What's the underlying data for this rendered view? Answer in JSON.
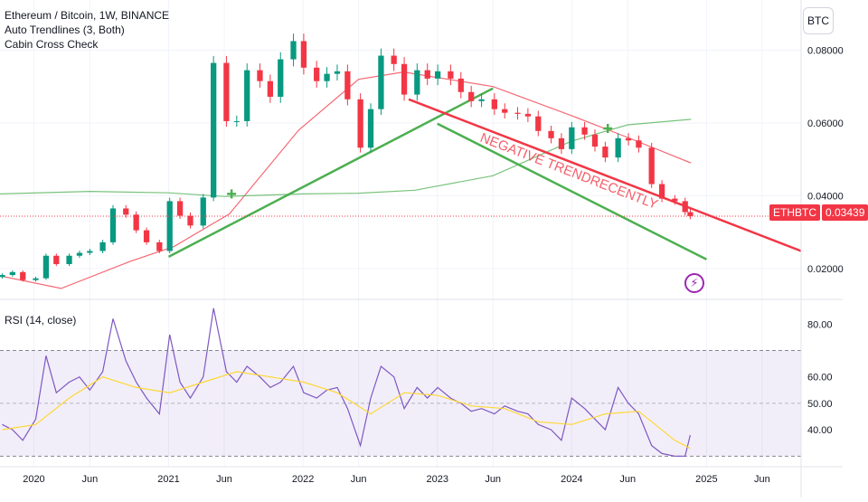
{
  "legend": {
    "title": "Ethereum / Bitcoin, 1W, BINANCE",
    "indicators": [
      "Auto Trendlines (3, Both)",
      "Cabin Cross Check"
    ],
    "rsi_label": "RSI (14, close)"
  },
  "currency_button": "BTC",
  "price_badge": {
    "symbol": "ETHBTC",
    "value": "0.03439"
  },
  "annotation": "NEGATIVE TRENDRECENTLY",
  "colors": {
    "up": "#089981",
    "down": "#f23645",
    "ma_fast": "#f23645",
    "ma_slow": "#4caf50",
    "trend_up": "#4caf50",
    "trend_down": "#f23645",
    "rsi": "#7e57c2",
    "rsi_ma": "#fdd835",
    "rsi_band": "#7e57c2"
  },
  "icons": {
    "alert": "lightning-icon"
  },
  "chart_data": [
    {
      "type": "candlestick",
      "title": "Ethereum / Bitcoin, 1W, BINANCE",
      "x_ticks": [
        "2020",
        "Jun",
        "2021",
        "Jun",
        "2022",
        "Jun",
        "2023",
        "Jun",
        "2024",
        "Jun",
        "2025",
        "Jun"
      ],
      "x_tick_dates": [
        "2020-01-01",
        "2020-06-01",
        "2021-01-01",
        "2021-06-01",
        "2022-01-01",
        "2022-06-01",
        "2023-01-01",
        "2023-06-01",
        "2024-01-01",
        "2024-06-01",
        "2025-01-01",
        "2025-06-01"
      ],
      "x_range": [
        "2019-10-01",
        "2025-09-15"
      ],
      "y_ticks": [
        "0.02000",
        "0.04000",
        "0.06000",
        "0.08000"
      ],
      "ylim": [
        0.0115,
        0.0938
      ],
      "last_price": 0.03439,
      "series": [
        {
          "type": "line",
          "x": [
            "2019-09-30",
            "2020-03-15",
            "2020-09-20",
            "2021-01-15",
            "2021-06-15",
            "2021-12-20",
            "2022-06-01",
            "2022-10-01",
            "2023-06-01",
            "2024-01-01",
            "2024-06-01",
            "2024-11-20"
          ],
          "values": [
            0.018,
            0.0145,
            0.022,
            0.026,
            0.035,
            0.058,
            0.072,
            0.074,
            0.07,
            0.062,
            0.056,
            0.049
          ]
        },
        {
          "type": "line",
          "x": [
            "2019-09-30",
            "2020-06-01",
            "2021-01-01",
            "2021-06-01",
            "2022-01-01",
            "2022-06-01",
            "2022-11-01",
            "2023-06-01",
            "2024-01-01",
            "2024-06-01",
            "2024-11-20"
          ],
          "values": [
            0.0405,
            0.0412,
            0.0408,
            0.0398,
            0.0405,
            0.0407,
            0.0415,
            0.0455,
            0.055,
            0.0595,
            0.061
          ]
        },
        {
          "type": "trendline",
          "x": [
            "2021-01-01",
            "2023-06-01"
          ],
          "values": [
            0.0232,
            0.0695
          ]
        },
        {
          "type": "trendline",
          "x": [
            "2022-10-15",
            "2025-09-15"
          ],
          "values": [
            0.0665,
            0.0248
          ]
        },
        {
          "type": "trendline",
          "x": [
            "2023-01-01",
            "2025-01-01"
          ],
          "values": [
            0.0598,
            0.0225
          ]
        }
      ],
      "candles": [
        {
          "x": "2019-10-07",
          "close": 0.0182
        },
        {
          "x": "2019-11-04",
          "close": 0.019
        },
        {
          "x": "2019-12-02",
          "close": 0.0168
        },
        {
          "x": "2020-01-06",
          "close": 0.0173
        },
        {
          "x": "2020-02-03",
          "close": 0.0235
        },
        {
          "x": "2020-03-02",
          "close": 0.0212
        },
        {
          "x": "2020-04-06",
          "close": 0.0235
        },
        {
          "x": "2020-05-04",
          "close": 0.0243
        },
        {
          "x": "2020-06-01",
          "close": 0.0248
        },
        {
          "x": "2020-07-06",
          "close": 0.0272
        },
        {
          "x": "2020-08-03",
          "close": 0.0365
        },
        {
          "x": "2020-09-07",
          "close": 0.0348
        },
        {
          "x": "2020-10-05",
          "close": 0.0305
        },
        {
          "x": "2020-11-02",
          "close": 0.0272
        },
        {
          "x": "2020-12-07",
          "close": 0.0248
        },
        {
          "x": "2021-01-04",
          "close": 0.0385
        },
        {
          "x": "2021-02-01",
          "close": 0.0345
        },
        {
          "x": "2021-03-01",
          "close": 0.0318
        },
        {
          "x": "2021-04-05",
          "close": 0.0395
        },
        {
          "x": "2021-05-03",
          "close": 0.0765
        },
        {
          "x": "2021-06-07",
          "close": 0.0605
        },
        {
          "x": "2021-07-05",
          "close": 0.0605
        },
        {
          "x": "2021-08-02",
          "close": 0.0745
        },
        {
          "x": "2021-09-06",
          "close": 0.0715
        },
        {
          "x": "2021-10-04",
          "close": 0.0672
        },
        {
          "x": "2021-11-01",
          "close": 0.0775
        },
        {
          "x": "2021-12-06",
          "close": 0.0825
        },
        {
          "x": "2022-01-03",
          "close": 0.0752
        },
        {
          "x": "2022-02-07",
          "close": 0.0715
        },
        {
          "x": "2022-03-07",
          "close": 0.0735
        },
        {
          "x": "2022-04-04",
          "close": 0.0742
        },
        {
          "x": "2022-05-02",
          "close": 0.0665
        },
        {
          "x": "2022-06-06",
          "close": 0.0532
        },
        {
          "x": "2022-07-04",
          "close": 0.0638
        },
        {
          "x": "2022-08-01",
          "close": 0.0785
        },
        {
          "x": "2022-09-05",
          "close": 0.0762
        },
        {
          "x": "2022-10-03",
          "close": 0.0678
        },
        {
          "x": "2022-11-07",
          "close": 0.0745
        },
        {
          "x": "2022-12-05",
          "close": 0.0722
        },
        {
          "x": "2023-01-02",
          "close": 0.0742
        },
        {
          "x": "2023-02-06",
          "close": 0.0722
        },
        {
          "x": "2023-03-06",
          "close": 0.0685
        },
        {
          "x": "2023-04-03",
          "close": 0.066
        },
        {
          "x": "2023-05-01",
          "close": 0.0665
        },
        {
          "x": "2023-06-05",
          "close": 0.0638
        },
        {
          "x": "2023-07-03",
          "close": 0.0628
        },
        {
          "x": "2023-08-07",
          "close": 0.0625
        },
        {
          "x": "2023-09-04",
          "close": 0.0618
        },
        {
          "x": "2023-10-02",
          "close": 0.0578
        },
        {
          "x": "2023-11-06",
          "close": 0.0558
        },
        {
          "x": "2023-12-04",
          "close": 0.0528
        },
        {
          "x": "2024-01-01",
          "close": 0.0588
        },
        {
          "x": "2024-02-05",
          "close": 0.0568
        },
        {
          "x": "2024-03-04",
          "close": 0.0535
        },
        {
          "x": "2024-04-01",
          "close": 0.0505
        },
        {
          "x": "2024-05-06",
          "close": 0.0558
        },
        {
          "x": "2024-06-03",
          "close": 0.0552
        },
        {
          "x": "2024-07-01",
          "close": 0.0532
        },
        {
          "x": "2024-08-05",
          "close": 0.0432
        },
        {
          "x": "2024-09-02",
          "close": 0.0392
        },
        {
          "x": "2024-10-07",
          "close": 0.0385
        },
        {
          "x": "2024-11-04",
          "close": 0.0355
        },
        {
          "x": "2024-11-18",
          "close": 0.03439
        }
      ],
      "markers": [
        {
          "x": "2021-06-21",
          "value": 0.0405,
          "shape": "cross"
        },
        {
          "x": "2024-04-08",
          "value": 0.0585,
          "shape": "cross"
        }
      ]
    },
    {
      "type": "line",
      "title": "RSI (14, close)",
      "y_ticks": [
        "40.00",
        "50.00",
        "60.00",
        "80.00"
      ],
      "ylim": [
        26,
        89
      ],
      "band": [
        30,
        70
      ],
      "midline": 50,
      "series": [
        {
          "x": [
            "2019-10-07",
            "2019-11-04",
            "2019-12-02",
            "2020-01-06",
            "2020-02-03",
            "2020-03-02",
            "2020-04-06",
            "2020-05-04",
            "2020-06-01",
            "2020-07-06",
            "2020-08-03",
            "2020-09-07",
            "2020-10-05",
            "2020-11-02",
            "2020-12-07",
            "2021-01-04",
            "2021-02-01",
            "2021-03-01",
            "2021-04-05",
            "2021-05-03",
            "2021-06-07",
            "2021-07-05",
            "2021-08-02",
            "2021-09-06",
            "2021-10-04",
            "2021-11-01",
            "2021-12-06",
            "2022-01-03",
            "2022-02-07",
            "2022-03-07",
            "2022-04-04",
            "2022-05-02",
            "2022-06-06",
            "2022-07-04",
            "2022-08-01",
            "2022-09-05",
            "2022-10-03",
            "2022-11-07",
            "2022-12-05",
            "2023-01-02",
            "2023-02-06",
            "2023-03-06",
            "2023-04-03",
            "2023-05-01",
            "2023-06-05",
            "2023-07-03",
            "2023-08-07",
            "2023-09-04",
            "2023-10-02",
            "2023-11-06",
            "2023-12-04",
            "2024-01-01",
            "2024-02-05",
            "2024-03-04",
            "2024-04-01",
            "2024-05-06",
            "2024-06-03",
            "2024-07-01",
            "2024-08-05",
            "2024-09-02",
            "2024-10-07",
            "2024-11-04",
            "2024-11-18"
          ],
          "values": [
            42,
            40,
            36,
            44,
            68,
            54,
            58,
            60,
            55,
            62,
            82,
            66,
            58,
            52,
            46,
            76,
            58,
            52,
            60,
            86,
            62,
            58,
            64,
            60,
            56,
            58,
            64,
            54,
            52,
            55,
            56,
            48,
            34,
            52,
            64,
            60,
            48,
            56,
            52,
            56,
            52,
            50,
            47,
            48,
            46,
            49,
            47,
            46,
            42,
            40,
            36,
            52,
            48,
            44,
            40,
            56,
            50,
            46,
            34,
            31,
            30,
            30,
            38
          ]
        },
        {
          "x": [
            "2019-10-07",
            "2020-01-06",
            "2020-04-06",
            "2020-07-06",
            "2020-10-05",
            "2021-01-04",
            "2021-04-05",
            "2021-07-05",
            "2021-10-04",
            "2022-01-03",
            "2022-04-04",
            "2022-07-04",
            "2022-10-03",
            "2023-01-02",
            "2023-04-03",
            "2023-07-03",
            "2023-10-02",
            "2024-01-01",
            "2024-04-01",
            "2024-07-01",
            "2024-10-07",
            "2024-11-18"
          ],
          "values": [
            40,
            42,
            52,
            60,
            56,
            54,
            58,
            62,
            60,
            58,
            54,
            46,
            54,
            53,
            49,
            48,
            43,
            42,
            46,
            47,
            36,
            33
          ]
        }
      ]
    }
  ]
}
